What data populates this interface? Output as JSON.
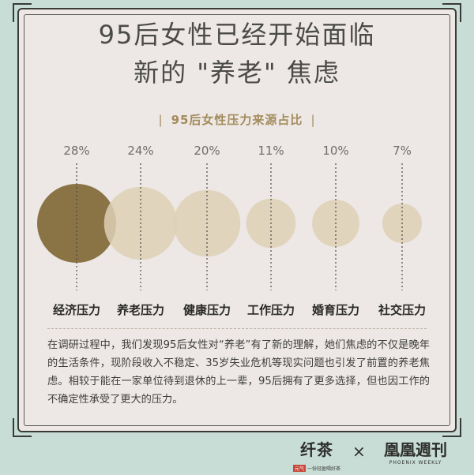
{
  "header": {
    "title_line1": "95后女性已经开始面临",
    "title_line2": "新的 \"养老\" 焦虑",
    "subtitle": "95后女性压力来源占比"
  },
  "chart_data": {
    "type": "bubble",
    "title": "95后女性压力来源占比",
    "categories": [
      "经济压力",
      "养老压力",
      "健康压力",
      "工作压力",
      "婚育压力",
      "社交压力"
    ],
    "values": [
      28,
      24,
      20,
      11,
      10,
      7
    ],
    "value_labels": [
      "28%",
      "24%",
      "20%",
      "11%",
      "10%",
      "7%"
    ],
    "unit": "%",
    "colors": {
      "highlight": "#8a7344",
      "normal": "#ddd0b6",
      "label": "#6e6e6a",
      "category": "#2a2a28"
    }
  },
  "body": {
    "paragraph": "在调研过程中，我们发现95后女性对“养老”有了新的理解，她们焦虑的不仅是晚年的生活条件，现阶段收入不稳定、35岁失业危机等现实问题也引发了前置的养老焦虑。相较于能在一家单位待到退休的上一辈，95后拥有了更多选择，但也因工作的不确定性承受了更大的压力。"
  },
  "footer": {
    "brand_left": "纤茶",
    "brand_left_tag": "元气",
    "brand_left_slogan": "一份轻盈喝好茶",
    "times": "×",
    "brand_right": "凰凰週刊",
    "brand_right_en": "PHOENIX WEEKLY"
  }
}
